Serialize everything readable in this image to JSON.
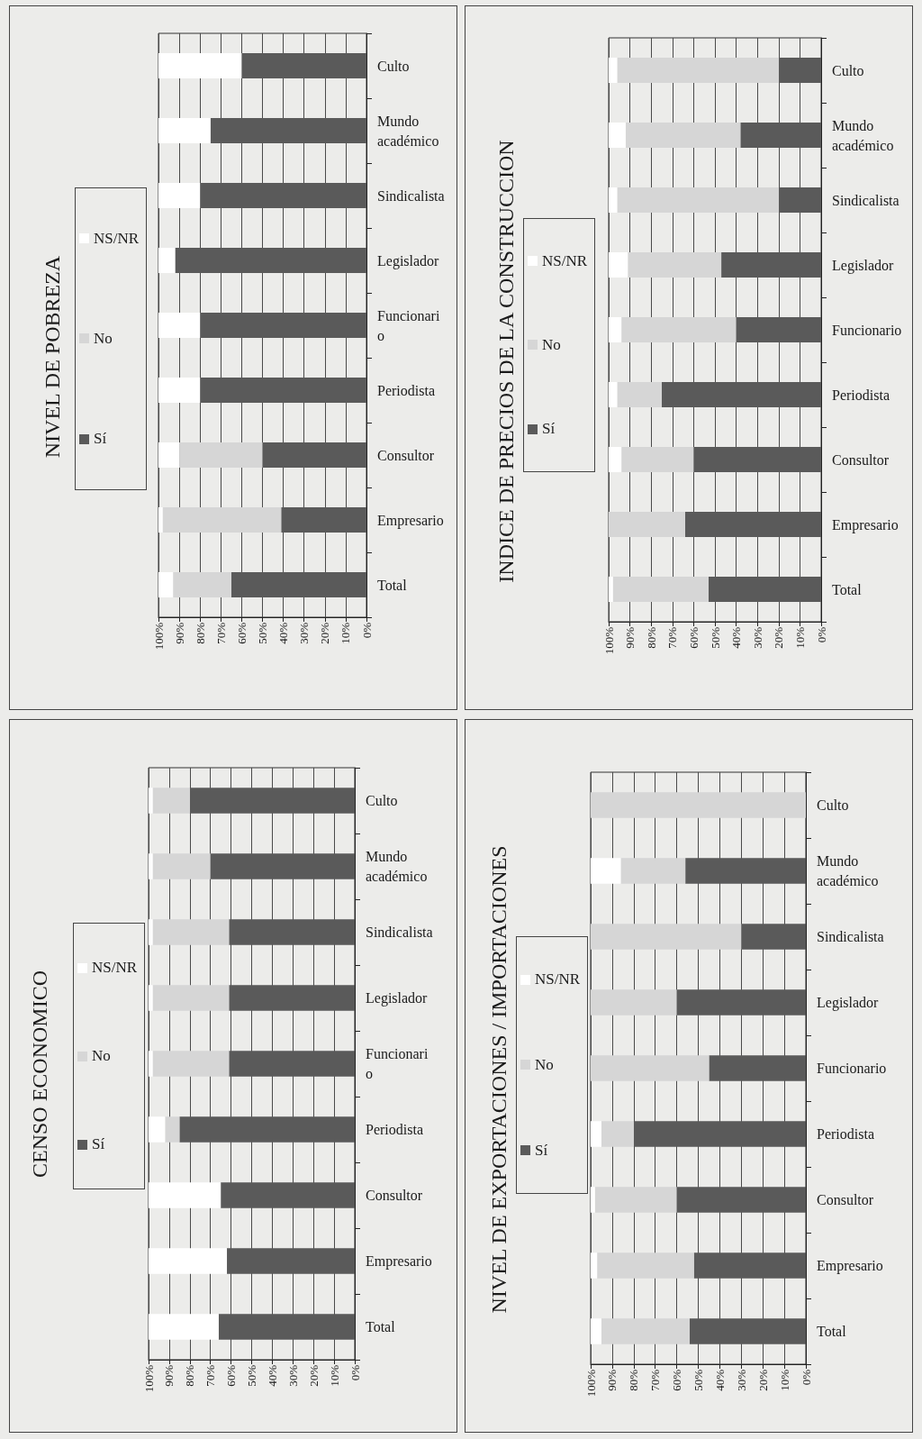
{
  "chart_data": [
    {
      "type": "bar",
      "title": "NIVEL DE POBREZA",
      "orientation": "horizontal",
      "stacked": true,
      "categories": [
        "Culto",
        "Mundo académico",
        "Sindicalista",
        "Legislador",
        "Funcionario",
        "Periodista",
        "Consultor",
        "Empresario",
        "Total"
      ],
      "series": [
        {
          "name": "Sí",
          "color": "#5a5a5a",
          "values": [
            60,
            75,
            80,
            92,
            80,
            80,
            50,
            41,
            65
          ]
        },
        {
          "name": "No",
          "color": "#d6d6d6",
          "values": [
            null,
            null,
            null,
            null,
            null,
            null,
            40,
            57,
            28
          ]
        },
        {
          "name": "NS/NR",
          "color": "#ffffff",
          "values": [
            40,
            25,
            20,
            8,
            20,
            20,
            10,
            2,
            7
          ]
        }
      ],
      "xlim": [
        100,
        0
      ],
      "xticks": [
        {
          "value": 100,
          "label": "100%"
        },
        {
          "value": 90,
          "label": "90%"
        },
        {
          "value": 80,
          "label": "80%"
        },
        {
          "value": 70,
          "label": "70%"
        },
        {
          "value": 60,
          "label": "60%"
        },
        {
          "value": 50,
          "label": "50%"
        },
        {
          "value": 40,
          "label": "40%"
        },
        {
          "value": 30,
          "label": "30%"
        },
        {
          "value": 20,
          "label": "20%"
        },
        {
          "value": 10,
          "label": "10%"
        },
        {
          "value": 0,
          "label": "0%"
        }
      ],
      "grid": "x",
      "legend": "left"
    },
    {
      "type": "bar",
      "title": "INDICE DE PRECIOS DE LA CONSTRUCCION",
      "orientation": "horizontal",
      "stacked": true,
      "categories": [
        "Culto",
        "Mundo académico",
        "Sindicalista",
        "Legislador",
        "Funcionario",
        "Periodista",
        "Consultor",
        "Empresario",
        "Total"
      ],
      "series": [
        {
          "name": "Sí",
          "color": "#5a5a5a",
          "values": [
            20,
            38,
            20,
            47,
            40,
            75,
            60,
            64,
            53
          ]
        },
        {
          "name": "No",
          "color": "#d6d6d6",
          "values": [
            76,
            54,
            76,
            44,
            54,
            21,
            34,
            36,
            45
          ]
        },
        {
          "name": "NS/NR",
          "color": "#ffffff",
          "values": [
            4,
            8,
            4,
            9,
            6,
            4,
            6,
            null,
            2
          ]
        }
      ],
      "xlim": [
        100,
        0
      ],
      "xticks": [
        {
          "value": 100,
          "label": "100%"
        },
        {
          "value": 90,
          "label": "90%"
        },
        {
          "value": 80,
          "label": "80%"
        },
        {
          "value": 70,
          "label": "70%"
        },
        {
          "value": 60,
          "label": "60%"
        },
        {
          "value": 50,
          "label": "50%"
        },
        {
          "value": 40,
          "label": "40%"
        },
        {
          "value": 30,
          "label": "30%"
        },
        {
          "value": 20,
          "label": "20%"
        },
        {
          "value": 10,
          "label": "10%"
        },
        {
          "value": 0,
          "label": "0%"
        }
      ],
      "grid": "x",
      "legend": "left"
    },
    {
      "type": "bar",
      "title": "CENSO ECONOMICO",
      "orientation": "horizontal",
      "stacked": true,
      "categories": [
        "Culto",
        "Mundo académico",
        "Sindicalista",
        "Legislador",
        "Funcionario",
        "Periodista",
        "Consultor",
        "Empresario",
        "Total"
      ],
      "series": [
        {
          "name": "Sí",
          "color": "#5a5a5a",
          "values": [
            80,
            70,
            61,
            61,
            61,
            85,
            65,
            62,
            66
          ]
        },
        {
          "name": "No",
          "color": "#d6d6d6",
          "values": [
            18,
            28,
            37,
            37,
            37,
            7,
            null,
            null,
            null
          ]
        },
        {
          "name": "NS/NR",
          "color": "#ffffff",
          "values": [
            2,
            2,
            2,
            2,
            2,
            8,
            35,
            38,
            34
          ]
        }
      ],
      "xlim": [
        100,
        0
      ],
      "xticks": [
        {
          "value": 100,
          "label": "100%"
        },
        {
          "value": 90,
          "label": "90%"
        },
        {
          "value": 80,
          "label": "80%"
        },
        {
          "value": 70,
          "label": "70%"
        },
        {
          "value": 60,
          "label": "60%"
        },
        {
          "value": 50,
          "label": "50%"
        },
        {
          "value": 40,
          "label": "40%"
        },
        {
          "value": 30,
          "label": "30%"
        },
        {
          "value": 20,
          "label": "20%"
        },
        {
          "value": 10,
          "label": "10%"
        },
        {
          "value": 0,
          "label": "0%"
        }
      ],
      "grid": "x",
      "legend": "left"
    },
    {
      "type": "bar",
      "title": "NIVEL DE EXPORTACIONES / IMPORTACIONES",
      "orientation": "horizontal",
      "stacked": true,
      "categories": [
        "Culto",
        "Mundo académico",
        "Sindicalista",
        "Legislador",
        "Funcionario",
        "Periodista",
        "Consultor",
        "Empresario",
        "Total"
      ],
      "series": [
        {
          "name": "Sí",
          "color": "#5a5a5a",
          "values": [
            null,
            56,
            30,
            60,
            45,
            80,
            60,
            52,
            54
          ]
        },
        {
          "name": "No",
          "color": "#d6d6d6",
          "values": [
            100,
            30,
            70,
            40,
            55,
            15,
            38,
            45,
            41
          ]
        },
        {
          "name": "NS/NR",
          "color": "#ffffff",
          "values": [
            null,
            14,
            null,
            null,
            null,
            5,
            2,
            3,
            5
          ]
        }
      ],
      "xlim": [
        100,
        0
      ],
      "xticks": [
        {
          "value": 100,
          "label": "100%"
        },
        {
          "value": 90,
          "label": "90%"
        },
        {
          "value": 80,
          "label": "80%"
        },
        {
          "value": 70,
          "label": "70%"
        },
        {
          "value": 60,
          "label": "60%"
        },
        {
          "value": 50,
          "label": "50%"
        },
        {
          "value": 40,
          "label": "40%"
        },
        {
          "value": 30,
          "label": "30%"
        },
        {
          "value": 20,
          "label": "20%"
        },
        {
          "value": 10,
          "label": "10%"
        },
        {
          "value": 0,
          "label": "0%"
        }
      ],
      "grid": "x",
      "legend": "left"
    }
  ]
}
